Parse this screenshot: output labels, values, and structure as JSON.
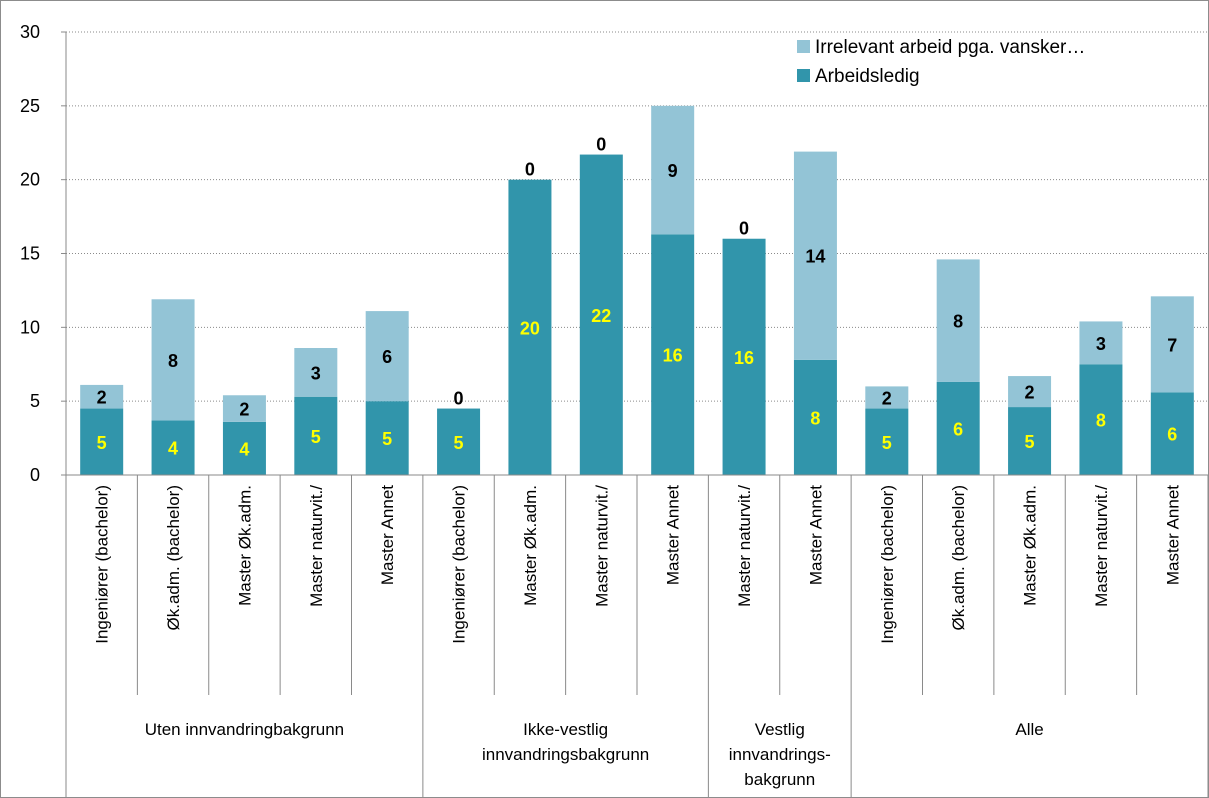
{
  "chart_data": {
    "type": "bar",
    "stacked": true,
    "title": "",
    "xlabel": "",
    "ylabel": "",
    "ylim": [
      0,
      30
    ],
    "yticks": [
      0,
      5,
      10,
      15,
      20,
      25,
      30
    ],
    "grid": "horizontal-dotted",
    "legend_position": "top-right",
    "groups": [
      {
        "label": "Uten innvandringbakgrunn",
        "lines": [
          "Uten innvandringbakgrunn"
        ],
        "categories": [
          "Ingeniører (bachelor)",
          "Øk.adm. (bachelor)",
          "Master Øk.adm.",
          "Master naturvit./",
          "Master Annet"
        ]
      },
      {
        "label": "Ikke-vestlig innvandringsbakgrunn",
        "lines": [
          "Ikke-vestlig",
          "innvandringsbakgrunn"
        ],
        "categories": [
          "Ingeniører (bachelor)",
          "Master Øk.adm.",
          "Master naturvit./",
          "Master Annet"
        ]
      },
      {
        "label": "Vestlig innvandrings-bakgrunn",
        "lines": [
          "Vestlig",
          "innvandrings-",
          "bakgrunn"
        ],
        "categories": [
          "Master naturvit./",
          "Master Annet"
        ]
      },
      {
        "label": "Alle",
        "lines": [
          "Alle"
        ],
        "categories": [
          "Ingeniører (bachelor)",
          "Øk.adm. (bachelor)",
          "Master Øk.adm.",
          "Master naturvit./",
          "Master Annet"
        ]
      }
    ],
    "series": [
      {
        "name": "Arbeidsledig",
        "color": "#3195ab",
        "label_color": "#ffff00",
        "values": [
          4.5,
          3.7,
          3.6,
          5.3,
          5.0,
          4.5,
          20.0,
          21.7,
          16.3,
          16.0,
          7.8,
          4.5,
          6.3,
          4.6,
          7.5,
          5.6
        ],
        "labels": [
          "5",
          "4",
          "4",
          "5",
          "5",
          "5",
          "20",
          "22",
          "16",
          "16",
          "8",
          "5",
          "6",
          "5",
          "8",
          "6"
        ]
      },
      {
        "name": "Irrelevant arbeid pga. vansker…",
        "color": "#93c4d6",
        "label_color": "#000000",
        "values": [
          1.6,
          8.2,
          1.8,
          3.3,
          6.1,
          0,
          0,
          0,
          8.7,
          0,
          14.1,
          1.5,
          8.3,
          2.1,
          2.9,
          6.5
        ],
        "labels": [
          "2",
          "8",
          "2",
          "3",
          "6",
          "0",
          "0",
          "0",
          "9",
          "0",
          "14",
          "2",
          "8",
          "2",
          "3",
          "7"
        ]
      }
    ],
    "legend_order": [
      "Irrelevant arbeid pga. vansker…",
      "Arbeidsledig"
    ]
  }
}
